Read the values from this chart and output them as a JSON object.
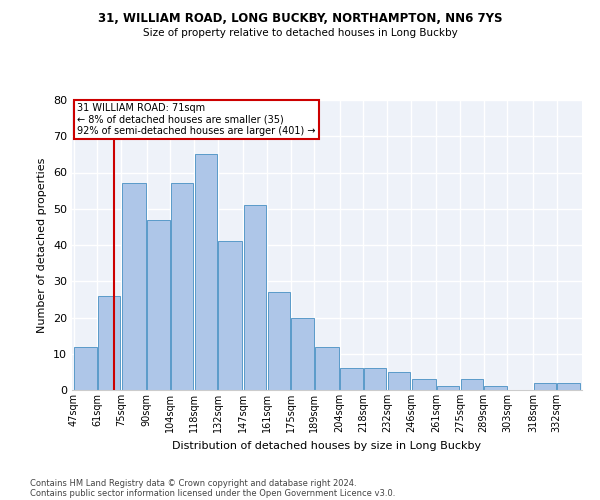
{
  "title1": "31, WILLIAM ROAD, LONG BUCKBY, NORTHAMPTON, NN6 7YS",
  "title2": "Size of property relative to detached houses in Long Buckby",
  "xlabel": "Distribution of detached houses by size in Long Buckby",
  "ylabel": "Number of detached properties",
  "footnote1": "Contains HM Land Registry data © Crown copyright and database right 2024.",
  "footnote2": "Contains public sector information licensed under the Open Government Licence v3.0.",
  "annotation_title": "31 WILLIAM ROAD: 71sqm",
  "annotation_line1": "← 8% of detached houses are smaller (35)",
  "annotation_line2": "92% of semi-detached houses are larger (401) →",
  "property_line_x": 71,
  "categories": [
    "47sqm",
    "61sqm",
    "75sqm",
    "90sqm",
    "104sqm",
    "118sqm",
    "132sqm",
    "147sqm",
    "161sqm",
    "175sqm",
    "189sqm",
    "204sqm",
    "218sqm",
    "232sqm",
    "246sqm",
    "261sqm",
    "275sqm",
    "289sqm",
    "303sqm",
    "318sqm",
    "332sqm"
  ],
  "bin_edges": [
    47,
    61,
    75,
    90,
    104,
    118,
    132,
    147,
    161,
    175,
    189,
    204,
    218,
    232,
    246,
    261,
    275,
    289,
    303,
    318,
    332,
    346
  ],
  "values": [
    12,
    26,
    57,
    47,
    57,
    65,
    41,
    51,
    27,
    20,
    12,
    6,
    6,
    5,
    3,
    1,
    3,
    1,
    0,
    2,
    2
  ],
  "bar_color": "#aec6e8",
  "bar_edge_color": "#5a9ac9",
  "property_line_color": "#cc0000",
  "annotation_box_color": "#cc0000",
  "background_color": "#eef2f9",
  "ylim": [
    0,
    80
  ],
  "yticks": [
    0,
    10,
    20,
    30,
    40,
    50,
    60,
    70,
    80
  ]
}
